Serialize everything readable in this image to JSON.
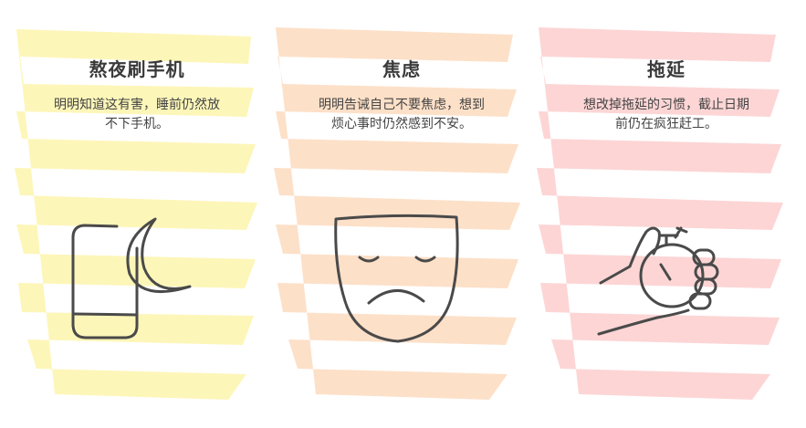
{
  "cards": [
    {
      "title": "熬夜刷手机",
      "desc": "明明知道这有害，睡前仍然放不下手机。",
      "color": "#fdf6b9",
      "icon": "phone-moon-icon"
    },
    {
      "title": "焦虑",
      "desc": "明明告诫自己不要焦虑，想到烦心事时仍然感到不安。",
      "color": "#fde0c8",
      "icon": "sad-mask-icon"
    },
    {
      "title": "拖延",
      "desc": "想改掉拖延的习惯，截止日期前仍在疯狂赶工。",
      "color": "#fdd5d5",
      "icon": "hand-stopwatch-icon"
    }
  ],
  "stroke_color": "#4a4a4a"
}
